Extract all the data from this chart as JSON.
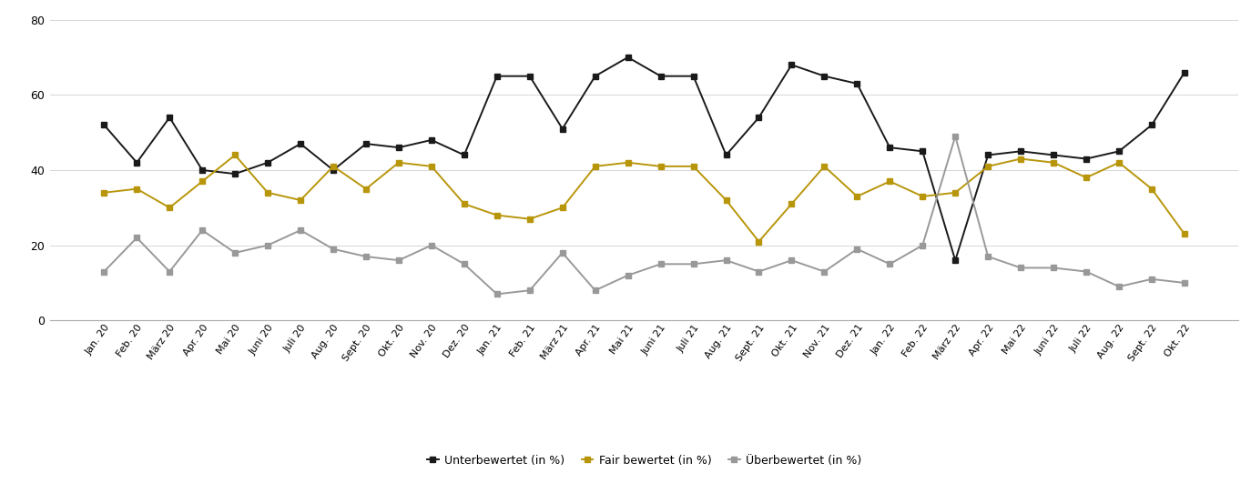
{
  "labels": [
    "Jan. 20",
    "Feb. 20",
    "März 20",
    "Apr. 20",
    "Mai 20",
    "Juni 20",
    "Juli 20",
    "Aug. 20",
    "Sept. 20",
    "Okt. 20",
    "Nov. 20",
    "Dez. 20",
    "Jan. 21",
    "Feb. 21",
    "März 21",
    "Apr. 21",
    "Mai 21",
    "Juni 21",
    "Juli 21",
    "Aug. 21",
    "Sept. 21",
    "Okt. 21",
    "Nov. 21",
    "Dez. 21",
    "Jan. 22",
    "Feb. 22",
    "März 22",
    "Apr. 22",
    "Mai 22",
    "Juni 22",
    "Juli 22",
    "Aug. 22",
    "Sept. 22",
    "Okt. 22"
  ],
  "unterbewertet": [
    52,
    42,
    54,
    40,
    39,
    42,
    47,
    40,
    47,
    46,
    48,
    44,
    65,
    65,
    51,
    65,
    70,
    65,
    65,
    44,
    54,
    68,
    65,
    63,
    46,
    45,
    16,
    44,
    45,
    44,
    43,
    45,
    52,
    66
  ],
  "fair_bewertet": [
    34,
    35,
    30,
    37,
    44,
    34,
    32,
    41,
    35,
    42,
    41,
    31,
    28,
    27,
    30,
    41,
    42,
    41,
    41,
    32,
    21,
    31,
    41,
    33,
    37,
    33,
    34,
    41,
    43,
    42,
    38,
    42,
    35,
    23
  ],
  "ueberbewertet": [
    13,
    22,
    13,
    24,
    18,
    20,
    24,
    19,
    17,
    16,
    20,
    15,
    7,
    8,
    18,
    8,
    12,
    15,
    15,
    16,
    13,
    16,
    13,
    19,
    15,
    20,
    49,
    17,
    14,
    14,
    13,
    9,
    11,
    10
  ],
  "colors": {
    "unterbewertet": "#1a1a1a",
    "fair_bewertet": "#b8960c",
    "ueberbewertet": "#999999"
  },
  "ylim": [
    0,
    80
  ],
  "yticks": [
    0,
    20,
    40,
    60,
    80
  ],
  "legend_labels": [
    "Unterbewertet (in %)",
    "Fair bewertet (in %)",
    "Überbewertet (in %)"
  ],
  "background_color": "#ffffff",
  "grid_color": "#d0d0d0"
}
